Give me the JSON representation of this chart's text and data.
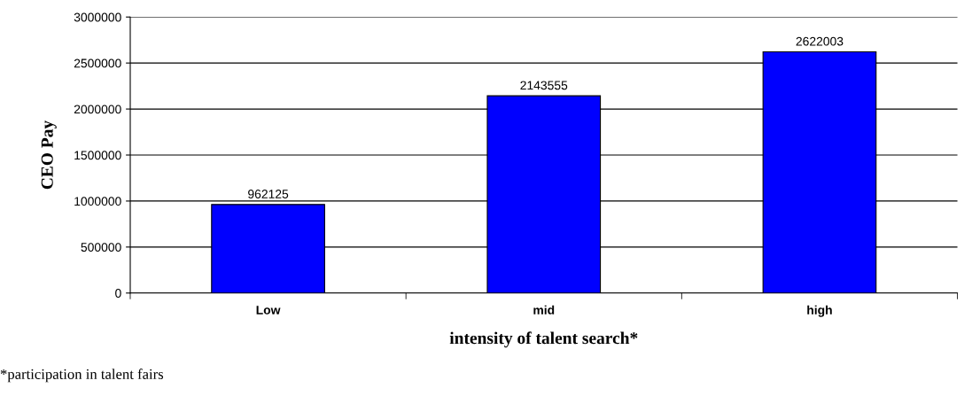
{
  "chart_data": {
    "type": "bar",
    "categories": [
      "Low",
      "mid",
      "high"
    ],
    "values": [
      962125,
      2143555,
      2622003
    ],
    "color": "#0000ff",
    "ylabel": "CEO Pay",
    "xlabel": "intensity of talent search*",
    "annotations": [
      "*participation in talent fairs"
    ],
    "ylim": [
      0,
      3000000
    ],
    "yticks": [
      0,
      500000,
      1000000,
      1500000,
      2000000,
      2500000,
      3000000
    ],
    "grid": "y",
    "data_labels": true,
    "legend": false
  }
}
